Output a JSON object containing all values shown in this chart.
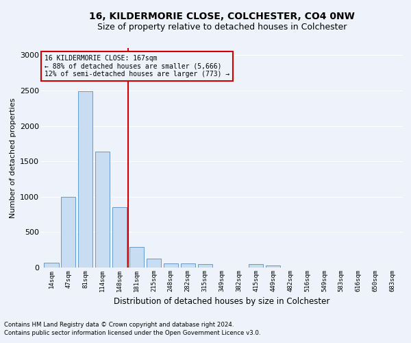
{
  "title1": "16, KILDERMORIE CLOSE, COLCHESTER, CO4 0NW",
  "title2": "Size of property relative to detached houses in Colchester",
  "xlabel": "Distribution of detached houses by size in Colchester",
  "ylabel": "Number of detached properties",
  "categories": [
    "14sqm",
    "47sqm",
    "81sqm",
    "114sqm",
    "148sqm",
    "181sqm",
    "215sqm",
    "248sqm",
    "282sqm",
    "315sqm",
    "349sqm",
    "382sqm",
    "415sqm",
    "449sqm",
    "482sqm",
    "516sqm",
    "549sqm",
    "583sqm",
    "616sqm",
    "650sqm",
    "683sqm"
  ],
  "values": [
    70,
    1000,
    2490,
    1640,
    850,
    290,
    130,
    60,
    55,
    50,
    0,
    0,
    50,
    30,
    0,
    0,
    0,
    0,
    0,
    0,
    0
  ],
  "bar_color": "#c9ddf2",
  "bar_edge_color": "#6699cc",
  "vline_color": "#cc0000",
  "annotation_text": "16 KILDERMORIE CLOSE: 167sqm\n← 88% of detached houses are smaller (5,666)\n12% of semi-detached houses are larger (773) →",
  "annotation_box_color": "#cc0000",
  "ylim": [
    0,
    3100
  ],
  "yticks": [
    0,
    500,
    1000,
    1500,
    2000,
    2500,
    3000
  ],
  "footnote1": "Contains HM Land Registry data © Crown copyright and database right 2024.",
  "footnote2": "Contains public sector information licensed under the Open Government Licence v3.0.",
  "bg_color": "#eef2fa",
  "grid_color": "#ffffff",
  "title1_fontsize": 10,
  "title2_fontsize": 9,
  "xlabel_fontsize": 8.5,
  "ylabel_fontsize": 8
}
